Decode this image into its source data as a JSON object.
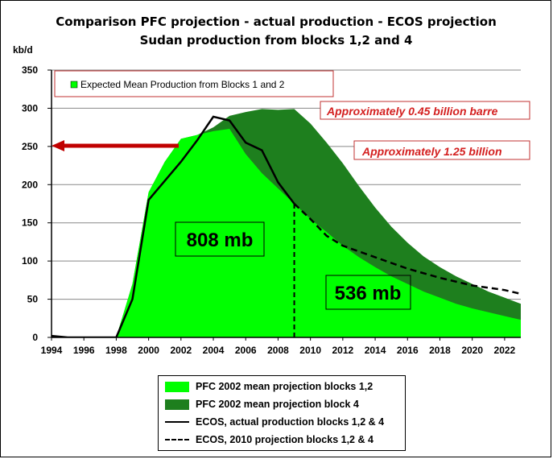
{
  "title_line1": "Comparison PFC projection - actual production - ECOS projection",
  "title_line2": "Sudan production from blocks 1,2 and 4",
  "colors": {
    "light_green": "#00ff00",
    "dark_green": "#1e7f1e",
    "arrow_red": "#c00000",
    "label_red": "#d42020"
  },
  "chart_data": {
    "type": "area",
    "title": "Comparison PFC projection - actual production - ECOS projection",
    "subtitle": "Sudan production from blocks 1,2 and 4",
    "ylabel": "kb/d",
    "xlim": [
      1994,
      2023
    ],
    "ylim": [
      0,
      350
    ],
    "x_ticks": [
      1994,
      1996,
      1998,
      2000,
      2002,
      2004,
      2006,
      2008,
      2010,
      2012,
      2014,
      2016,
      2018,
      2020,
      2022
    ],
    "y_ticks": [
      0,
      50,
      100,
      150,
      200,
      250,
      300,
      350
    ],
    "grid": "horizontal",
    "legend_position": "bottom",
    "series": [
      {
        "name": "PFC 2002 mean projection blocks 1,2",
        "kind": "area",
        "color": "#00ff00",
        "points": [
          [
            1994,
            0
          ],
          [
            1998,
            0
          ],
          [
            1999,
            70
          ],
          [
            2000,
            190
          ],
          [
            2001,
            230
          ],
          [
            2002,
            260
          ],
          [
            2003,
            265
          ],
          [
            2004,
            270
          ],
          [
            2005,
            273
          ],
          [
            2006,
            240
          ],
          [
            2007,
            215
          ],
          [
            2008,
            195
          ],
          [
            2009,
            175
          ],
          [
            2010,
            155
          ],
          [
            2011,
            138
          ],
          [
            2012,
            120
          ],
          [
            2013,
            105
          ],
          [
            2014,
            92
          ],
          [
            2015,
            80
          ],
          [
            2016,
            70
          ],
          [
            2017,
            60
          ],
          [
            2018,
            52
          ],
          [
            2019,
            44
          ],
          [
            2020,
            38
          ],
          [
            2021,
            33
          ],
          [
            2022,
            28
          ],
          [
            2023,
            23
          ]
        ]
      },
      {
        "name": "PFC 2002 mean projection block 4",
        "kind": "area",
        "color": "#1e7f1e",
        "points": [
          [
            1994,
            0
          ],
          [
            1998,
            0
          ],
          [
            1999,
            70
          ],
          [
            2000,
            190
          ],
          [
            2001,
            230
          ],
          [
            2002,
            260
          ],
          [
            2003,
            265
          ],
          [
            2004,
            275
          ],
          [
            2005,
            290
          ],
          [
            2006,
            295
          ],
          [
            2007,
            299
          ],
          [
            2008,
            298
          ],
          [
            2009,
            299
          ],
          [
            2010,
            280
          ],
          [
            2011,
            255
          ],
          [
            2012,
            228
          ],
          [
            2013,
            198
          ],
          [
            2014,
            170
          ],
          [
            2015,
            145
          ],
          [
            2016,
            124
          ],
          [
            2017,
            106
          ],
          [
            2018,
            92
          ],
          [
            2019,
            80
          ],
          [
            2020,
            70
          ],
          [
            2021,
            60
          ],
          [
            2022,
            52
          ],
          [
            2023,
            44
          ]
        ]
      },
      {
        "name": "ECOS, actual production blocks 1,2 & 4",
        "kind": "line",
        "style": "solid",
        "color": "#000000",
        "points": [
          [
            1994,
            2
          ],
          [
            1995,
            0
          ],
          [
            1998,
            0
          ],
          [
            1999,
            50
          ],
          [
            2000,
            180
          ],
          [
            2001,
            205
          ],
          [
            2002,
            230
          ],
          [
            2003,
            258
          ],
          [
            2004,
            289
          ],
          [
            2005,
            284
          ],
          [
            2006,
            255
          ],
          [
            2007,
            245
          ],
          [
            2008,
            203
          ],
          [
            2009,
            175
          ]
        ]
      },
      {
        "name": "ECOS, 2010 projection blocks 1,2 & 4",
        "kind": "line",
        "style": "dashed",
        "color": "#000000",
        "points": [
          [
            2009,
            175
          ],
          [
            2010,
            155
          ],
          [
            2011,
            133
          ],
          [
            2012,
            120
          ],
          [
            2014,
            105
          ],
          [
            2016,
            90
          ],
          [
            2018,
            78
          ],
          [
            2020,
            68
          ],
          [
            2022,
            62
          ],
          [
            2023,
            57
          ]
        ]
      }
    ],
    "annotations": {
      "top_box": "Expected Mean Production from Blocks 1 and 2",
      "red_label_1": "Approximately 0.45 billion barre",
      "red_label_2": "Approximately 1.25 billion",
      "volume_1": "808 mb",
      "volume_2": "536 mb",
      "divider_year": 2009
    }
  },
  "legend": [
    {
      "label": "PFC 2002 mean projection blocks 1,2",
      "kind": "area-light"
    },
    {
      "label": "PFC 2002 mean projection block 4",
      "kind": "area-dark"
    },
    {
      "label": "ECOS, actual production blocks 1,2 & 4",
      "kind": "line-solid"
    },
    {
      "label": "ECOS, 2010 projection blocks 1,2 & 4",
      "kind": "line-dashed"
    }
  ]
}
